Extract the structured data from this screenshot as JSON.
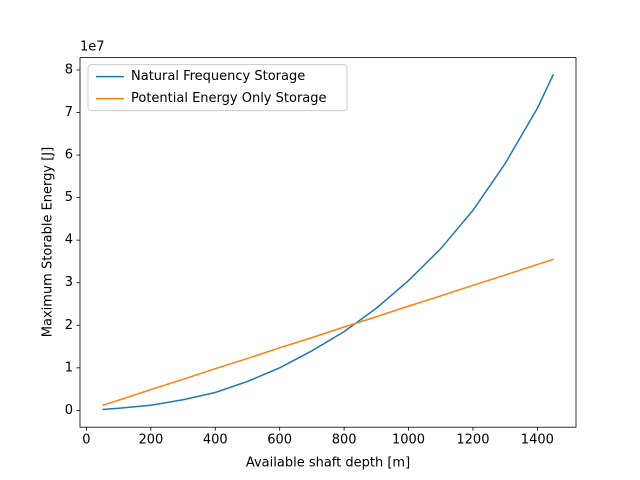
{
  "chart_data": {
    "type": "line",
    "xlabel": "Available shaft depth [m]",
    "ylabel": "Maximum Storable Energy [J]",
    "y_offset_label": "1e7",
    "x": [
      50,
      100,
      200,
      300,
      400,
      500,
      600,
      700,
      800,
      900,
      1000,
      1100,
      1200,
      1300,
      1400,
      1450
    ],
    "series": [
      {
        "name": "Natural Frequency Storage",
        "color": "#1f77b4",
        "values": [
          200000,
          500000,
          1200000,
          2500000,
          4200000,
          6800000,
          10000000,
          14000000,
          18500000,
          24000000,
          30500000,
          38000000,
          47000000,
          58000000,
          71000000,
          79000000
        ]
      },
      {
        "name": "Potential Energy Only Storage",
        "color": "#ff7f0e",
        "values": [
          1200000,
          2400000,
          4900000,
          7300000,
          9800000,
          12200000,
          14700000,
          17100000,
          19600000,
          22000000,
          24500000,
          26900000,
          29400000,
          31800000,
          34300000,
          35500000
        ]
      }
    ],
    "xlim": [
      -20,
      1520
    ],
    "ylim": [
      -3950000,
      82900000
    ],
    "xticks": [
      0,
      200,
      400,
      600,
      800,
      1000,
      1200,
      1400
    ],
    "yticks": [
      0,
      {
        "value": 10000000,
        "label": "1"
      },
      {
        "value": 20000000,
        "label": "2"
      },
      {
        "value": 30000000,
        "label": "3"
      },
      {
        "value": 40000000,
        "label": "4"
      },
      {
        "value": 50000000,
        "label": "5"
      },
      {
        "value": 60000000,
        "label": "6"
      },
      {
        "value": 70000000,
        "label": "7"
      },
      {
        "value": 80000000,
        "label": "8"
      }
    ],
    "legend": "upper left"
  }
}
